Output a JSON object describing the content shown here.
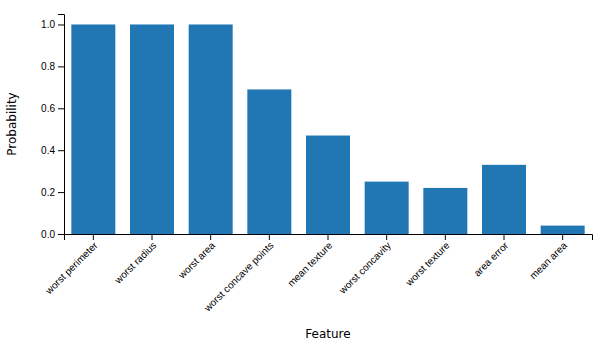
{
  "chart_data": {
    "type": "bar",
    "categories": [
      "worst perimeter",
      "worst radius",
      "worst area",
      "worst concave points",
      "mean texture",
      "worst concavity",
      "worst texture",
      "area error",
      "mean area"
    ],
    "values": [
      1.0,
      1.0,
      1.0,
      0.69,
      0.47,
      0.25,
      0.22,
      0.33,
      0.04
    ],
    "color": "#2077b4",
    "xlabel": "Feature",
    "ylabel": "Probability",
    "ylim": [
      0.0,
      1.05
    ],
    "yticks": [
      {
        "value": 0.0,
        "label": "0.0"
      },
      0.2,
      0.4,
      0.6,
      0.8,
      {
        "value": 1.0,
        "label": "1.0"
      }
    ],
    "grid": false
  }
}
